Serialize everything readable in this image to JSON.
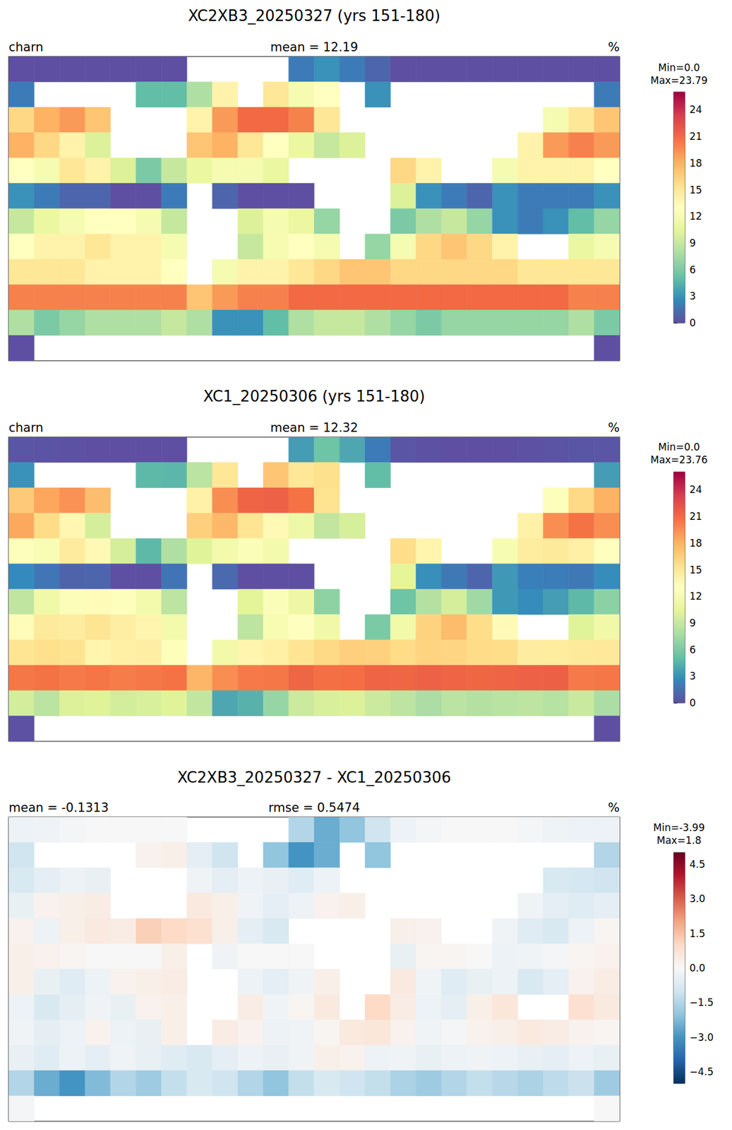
{
  "chart_data": [
    {
      "type": "heatmap",
      "title": "XC2XB3_20250327 (yrs 151-180)",
      "subtitle": [
        "charn",
        "mean = 12.19",
        "%"
      ],
      "xlim": [
        -180,
        180
      ],
      "ylim": [
        -90,
        90
      ],
      "tick_labels": false,
      "lon_edges": [
        -180,
        -165,
        -150,
        -135,
        -120,
        -105,
        -90,
        -75,
        -60,
        -45,
        -30,
        -15,
        0,
        15,
        30,
        45,
        60,
        75,
        90,
        105,
        120,
        135,
        150,
        165,
        180
      ],
      "lat_edges": [
        90,
        75,
        60,
        45,
        30,
        15,
        0,
        -15,
        -30,
        -45,
        -60,
        -75,
        -90
      ],
      "values": [
        [
          0,
          0,
          0,
          0,
          0,
          0,
          0,
          null,
          null,
          null,
          null,
          2,
          3,
          2,
          1,
          0,
          0,
          0,
          0,
          0,
          0,
          0,
          0,
          0
        ],
        [
          2,
          null,
          null,
          null,
          null,
          5,
          5,
          8,
          14,
          null,
          15,
          12,
          13,
          null,
          3,
          null,
          null,
          null,
          null,
          null,
          null,
          null,
          null,
          2
        ],
        [
          16,
          18,
          19,
          17,
          null,
          null,
          null,
          14,
          19,
          21,
          21,
          20,
          15,
          null,
          null,
          null,
          null,
          null,
          null,
          null,
          null,
          12,
          15,
          17
        ],
        [
          18,
          16,
          14,
          10,
          null,
          null,
          null,
          17,
          18,
          15,
          13,
          11,
          9,
          10,
          null,
          null,
          null,
          null,
          null,
          null,
          14,
          19,
          20,
          19
        ],
        [
          13,
          12,
          15,
          14,
          10,
          6,
          9,
          11,
          12,
          12,
          11,
          null,
          null,
          null,
          null,
          16,
          14,
          null,
          null,
          12,
          14,
          14,
          14,
          13
        ],
        [
          3,
          2,
          1,
          1,
          0,
          0,
          2,
          null,
          1,
          0,
          0,
          0,
          null,
          null,
          null,
          10,
          3,
          2,
          1,
          3,
          2,
          2,
          2,
          3
        ],
        [
          9,
          11,
          12,
          13,
          13,
          12,
          9,
          null,
          null,
          10,
          12,
          11,
          7,
          null,
          null,
          6,
          8,
          9,
          7,
          3,
          2,
          3,
          5,
          7
        ],
        [
          13,
          14,
          14,
          15,
          14,
          14,
          12,
          null,
          null,
          9,
          12,
          13,
          12,
          null,
          7,
          12,
          16,
          17,
          16,
          14,
          null,
          null,
          11,
          12
        ],
        [
          15,
          15,
          15,
          14,
          14,
          14,
          13,
          null,
          12,
          14,
          14,
          15,
          16,
          17,
          17,
          16,
          16,
          16,
          16,
          16,
          15,
          15,
          15,
          15
        ],
        [
          20,
          20,
          20,
          20,
          20,
          20,
          20,
          17,
          19,
          20,
          20,
          21,
          21,
          21,
          21,
          21,
          21,
          21,
          21,
          21,
          21,
          21,
          20,
          20
        ],
        [
          8,
          6,
          7,
          8,
          8,
          8,
          9,
          8,
          3,
          3,
          5,
          8,
          9,
          9,
          8,
          7,
          6,
          7,
          7,
          7,
          7,
          7,
          8,
          6
        ],
        [
          0,
          null,
          null,
          null,
          null,
          null,
          null,
          null,
          null,
          null,
          null,
          null,
          null,
          null,
          null,
          null,
          null,
          null,
          null,
          null,
          null,
          null,
          null,
          0
        ]
      ],
      "colorbar": {
        "label": [
          "Min=0.0",
          "Max=23.79"
        ],
        "lim": [
          0,
          26
        ],
        "ticks": [
          0,
          3,
          6,
          9,
          12,
          15,
          18,
          21,
          24
        ]
      }
    },
    {
      "type": "heatmap",
      "title": "XC1_20250306 (yrs 151-180)",
      "subtitle": [
        "charn",
        "mean = 12.32",
        "%"
      ],
      "xlim": [
        -180,
        180
      ],
      "ylim": [
        -90,
        90
      ],
      "tick_labels": false,
      "lon_edges": [
        -180,
        -165,
        -150,
        -135,
        -120,
        -105,
        -90,
        -75,
        -60,
        -45,
        -30,
        -15,
        0,
        15,
        30,
        45,
        60,
        75,
        90,
        105,
        120,
        135,
        150,
        165,
        180
      ],
      "lat_edges": [
        90,
        75,
        60,
        45,
        30,
        15,
        0,
        -15,
        -30,
        -45,
        -60,
        -75,
        -90
      ],
      "values": [
        [
          0.3,
          0.2,
          0.1,
          0,
          0,
          0,
          0,
          null,
          null,
          null,
          null,
          3.5,
          5.5,
          4,
          2,
          0.3,
          0.1,
          0,
          0,
          0,
          0.1,
          0.2,
          0.3,
          0.3
        ],
        [
          3,
          null,
          null,
          null,
          null,
          4.8,
          4.7,
          8.5,
          15,
          null,
          17,
          15,
          15.5,
          null,
          5,
          null,
          null,
          null,
          null,
          null,
          null,
          null,
          null,
          3.5
        ],
        [
          16.8,
          18.5,
          19.3,
          17.4,
          null,
          null,
          null,
          14.2,
          19.5,
          21.3,
          21.4,
          20.6,
          15.3,
          null,
          null,
          null,
          null,
          null,
          null,
          null,
          null,
          12.8,
          15.9,
          18
        ],
        [
          18.4,
          15.8,
          13.7,
          9.6,
          null,
          null,
          null,
          16.5,
          17.7,
          15.2,
          13.5,
          11.3,
          8.8,
          9.7,
          null,
          null,
          null,
          null,
          null,
          null,
          14.2,
          19.5,
          20.6,
          19.5
        ],
        [
          12.8,
          12.3,
          14.7,
          13.5,
          9.6,
          4.8,
          8,
          10.2,
          11.7,
          12.5,
          11.8,
          null,
          null,
          null,
          null,
          15.7,
          13.8,
          null,
          null,
          12.2,
          14.6,
          14.8,
          14.3,
          12.9
        ],
        [
          2.7,
          1.8,
          0.9,
          1,
          0,
          0,
          1.7,
          null,
          1.2,
          0,
          0,
          0,
          null,
          null,
          null,
          10.4,
          2.9,
          1.9,
          1,
          3.3,
          2.2,
          2.1,
          1.9,
          2.8
        ],
        [
          8.7,
          11.4,
          12.6,
          13.3,
          12.8,
          11.7,
          8.6,
          null,
          null,
          10.3,
          12.5,
          11.2,
          6.7,
          null,
          null,
          5.5,
          8.2,
          9.6,
          7.4,
          3.3,
          2.8,
          3.5,
          4.8,
          6.6
        ],
        [
          13.3,
          14.8,
          14.5,
          15.2,
          14.4,
          13.8,
          11.7,
          null,
          null,
          8.6,
          12.2,
          12.9,
          11.5,
          null,
          6,
          11.6,
          16.3,
          17.5,
          15.7,
          13.4,
          null,
          null,
          10.2,
          11.5
        ],
        [
          15.2,
          15.5,
          15.3,
          13.8,
          14.3,
          14.4,
          12.7,
          null,
          11.6,
          13.8,
          14.3,
          15.2,
          15.9,
          16.5,
          16.4,
          15.8,
          16.2,
          16.1,
          15.8,
          15.7,
          14.5,
          14.6,
          14.8,
          14.9
        ],
        [
          20.4,
          20.6,
          20.3,
          20.5,
          20.2,
          20.4,
          20.6,
          17.8,
          19.5,
          20.3,
          20.4,
          21.2,
          20.7,
          20.8,
          21.3,
          21.2,
          21.4,
          21.3,
          21.2,
          21.3,
          21.4,
          21.5,
          20.3,
          20.4
        ],
        [
          9.5,
          8.5,
          10,
          10.2,
          9.5,
          9.8,
          10.2,
          8.8,
          4,
          4.5,
          7,
          9.2,
          9.8,
          10,
          9.2,
          8.6,
          7.8,
          8.5,
          8.2,
          8.4,
          8.6,
          8.3,
          9.1,
          7.8
        ],
        [
          0.1,
          null,
          null,
          null,
          null,
          null,
          null,
          null,
          null,
          null,
          null,
          null,
          null,
          null,
          null,
          null,
          null,
          null,
          null,
          null,
          null,
          null,
          null,
          0
        ]
      ],
      "colorbar": {
        "label": [
          "Min=0.0",
          "Max=23.76"
        ],
        "lim": [
          0,
          26
        ],
        "ticks": [
          0,
          3,
          6,
          9,
          12,
          15,
          18,
          21,
          24
        ]
      }
    },
    {
      "type": "heatmap",
      "title": "XC2XB3_20250327 - XC1_20250306",
      "subtitle": [
        "mean = -0.1313",
        "rmse = 0.5474",
        "%"
      ],
      "xlim": [
        -180,
        180
      ],
      "ylim": [
        -90,
        90
      ],
      "tick_labels": false,
      "lon_edges": [
        -180,
        -165,
        -150,
        -135,
        -120,
        -105,
        -90,
        -75,
        -60,
        -45,
        -30,
        -15,
        0,
        15,
        30,
        45,
        60,
        75,
        90,
        105,
        120,
        135,
        150,
        165,
        180
      ],
      "lat_edges": [
        90,
        75,
        60,
        45,
        30,
        15,
        0,
        -15,
        -30,
        -45,
        -60,
        -75,
        -90
      ],
      "values": [
        [
          -0.3,
          -0.2,
          -0.1,
          0,
          0,
          0,
          0,
          null,
          null,
          null,
          null,
          -1.5,
          -2.5,
          -2,
          -1,
          -0.3,
          -0.1,
          0,
          0,
          0,
          -0.1,
          -0.2,
          -0.3,
          -0.3
        ],
        [
          -1,
          null,
          null,
          null,
          null,
          0.2,
          0.3,
          -0.5,
          -1,
          null,
          -2,
          -3,
          -2.5,
          null,
          -2,
          null,
          null,
          null,
          null,
          null,
          null,
          null,
          null,
          -1.5
        ],
        [
          -0.8,
          -0.5,
          -0.3,
          -0.4,
          null,
          null,
          null,
          -0.2,
          -0.5,
          -0.3,
          -0.4,
          -0.6,
          -0.3,
          null,
          null,
          null,
          null,
          null,
          null,
          null,
          null,
          -0.8,
          -0.9,
          -1
        ],
        [
          -0.4,
          0.2,
          0.3,
          0.4,
          null,
          null,
          null,
          0.5,
          0.3,
          -0.2,
          -0.5,
          -0.3,
          0.2,
          0.3,
          null,
          null,
          null,
          null,
          null,
          null,
          -0.2,
          -0.5,
          -0.6,
          -0.5
        ],
        [
          0.2,
          -0.3,
          0.3,
          0.5,
          0.4,
          1.2,
          1,
          0.8,
          0.3,
          -0.5,
          -0.8,
          null,
          null,
          null,
          null,
          0.3,
          0.2,
          null,
          null,
          -0.2,
          -0.6,
          -0.8,
          -0.3,
          0.1
        ],
        [
          0.3,
          0.2,
          0.1,
          0,
          0,
          0,
          0.3,
          null,
          -0.2,
          0,
          0,
          0,
          null,
          null,
          null,
          -0.4,
          0.1,
          0.1,
          0,
          -0.3,
          -0.2,
          -0.1,
          0.1,
          0.2
        ],
        [
          0.3,
          -0.4,
          -0.6,
          -0.3,
          0.2,
          0.3,
          0.4,
          null,
          null,
          -0.3,
          -0.5,
          -0.2,
          0.3,
          null,
          null,
          0.5,
          -0.2,
          -0.6,
          -0.4,
          -0.3,
          -0.8,
          -0.5,
          0.2,
          0.4
        ],
        [
          -0.3,
          -0.8,
          -0.5,
          -0.2,
          -0.4,
          0.2,
          0.3,
          null,
          null,
          0.4,
          -0.2,
          0.1,
          0.5,
          null,
          1,
          0.4,
          -0.3,
          -0.5,
          0.3,
          0.6,
          null,
          null,
          0.8,
          0.5
        ],
        [
          -0.2,
          -0.5,
          -0.3,
          0.2,
          -0.3,
          -0.4,
          0.3,
          null,
          0.4,
          0.2,
          -0.3,
          -0.2,
          0.1,
          0.5,
          0.6,
          0.2,
          -0.2,
          -0.1,
          0.2,
          0.3,
          0.5,
          0.4,
          0.2,
          0.1
        ],
        [
          -0.4,
          -0.6,
          -0.3,
          -0.5,
          -0.2,
          -0.4,
          -0.6,
          -0.8,
          -0.5,
          -0.3,
          -0.4,
          -0.2,
          0.3,
          0.2,
          -0.3,
          -0.2,
          -0.4,
          -0.3,
          -0.2,
          -0.3,
          -0.4,
          -0.5,
          -0.3,
          -0.4
        ],
        [
          -1.5,
          -2.5,
          -3,
          -2.2,
          -1.5,
          -1.8,
          -1.2,
          -0.8,
          -1,
          -1.5,
          -2,
          -1.2,
          -0.8,
          -1,
          -1.2,
          -1.6,
          -1.8,
          -1.5,
          -1.2,
          -1.4,
          -1.6,
          -1.3,
          -1.1,
          -1.8
        ],
        [
          -0.1,
          null,
          null,
          null,
          null,
          null,
          null,
          null,
          null,
          null,
          null,
          null,
          null,
          null,
          null,
          null,
          null,
          null,
          null,
          null,
          null,
          null,
          null,
          0
        ]
      ],
      "colorbar": {
        "label": [
          "Min=-3.99",
          "Max=1.8"
        ],
        "lim": [
          -5,
          5
        ],
        "ticks": [
          {
            "value": -4.5,
            "label": "−4.5"
          },
          {
            "value": -3,
            "label": "−3.0"
          },
          {
            "value": -1.5,
            "label": "−1.5"
          },
          {
            "value": 0,
            "label": "0.0"
          },
          1.5,
          {
            "value": 3,
            "label": "3.0"
          },
          4.5
        ]
      }
    }
  ]
}
